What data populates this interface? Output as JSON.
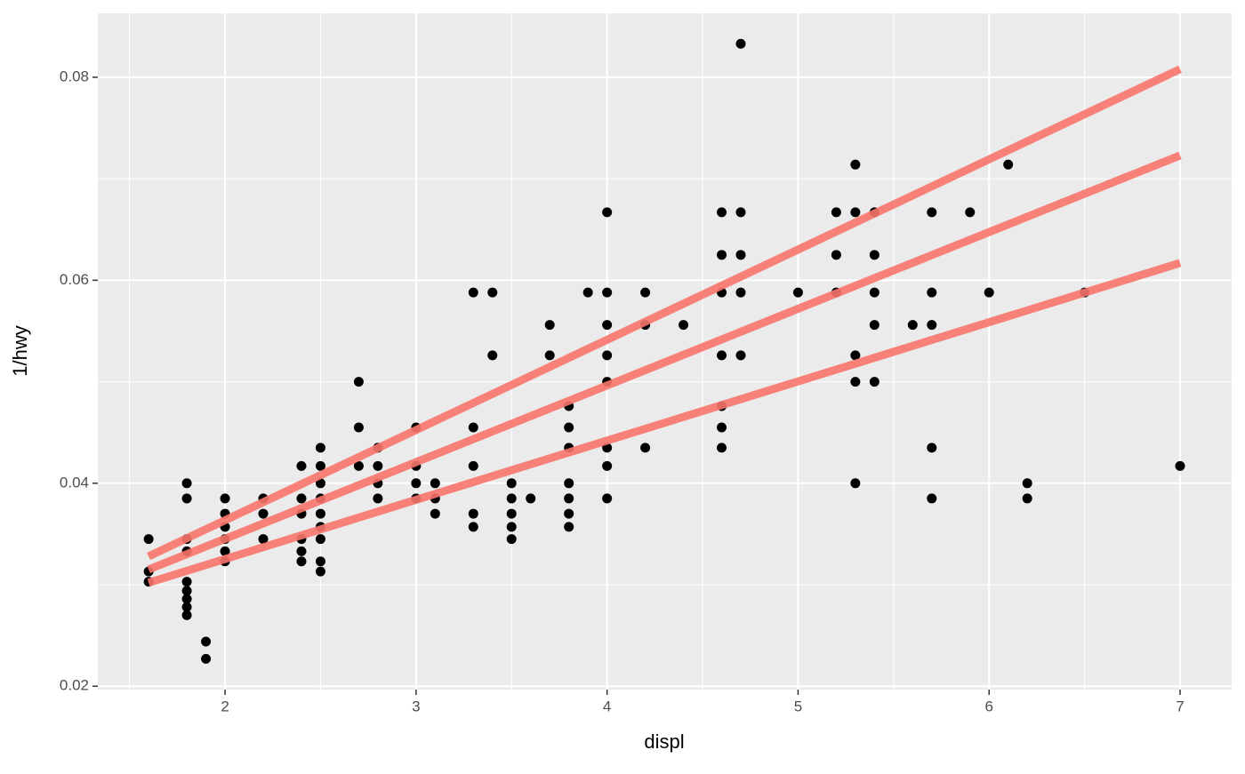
{
  "chart_data": {
    "type": "scatter",
    "xlabel": "displ",
    "ylabel": "1/hwy",
    "xlim": [
      1.334,
      7.27
    ],
    "ylim": [
      0.01967,
      0.0863
    ],
    "xticks": [
      2,
      3,
      4,
      5,
      6,
      7
    ],
    "yticks": [
      0.02,
      0.04,
      0.06,
      0.08
    ],
    "xminor": [
      1.5,
      2.5,
      3.5,
      4.5,
      5.5,
      6.5
    ],
    "yminor": [
      0.03,
      0.05,
      0.07
    ],
    "grid": true,
    "color": "#000000",
    "x": [
      1.6,
      1.6,
      1.6,
      1.8,
      1.8,
      1.8,
      1.8,
      1.8,
      1.8,
      1.8,
      1.8,
      1.8,
      1.9,
      1.9,
      2.0,
      2.0,
      2.0,
      2.0,
      2.0,
      2.0,
      2.2,
      2.2,
      2.2,
      2.4,
      2.4,
      2.4,
      2.4,
      2.4,
      2.4,
      2.5,
      2.5,
      2.5,
      2.5,
      2.5,
      2.5,
      2.5,
      2.5,
      2.5,
      2.7,
      2.7,
      2.7,
      2.8,
      2.8,
      2.8,
      2.8,
      3.0,
      3.0,
      3.0,
      3.0,
      3.1,
      3.1,
      3.1,
      3.3,
      3.3,
      3.3,
      3.3,
      3.3,
      3.4,
      3.4,
      3.5,
      3.5,
      3.5,
      3.5,
      3.5,
      3.6,
      3.7,
      3.7,
      3.8,
      3.8,
      3.8,
      3.8,
      3.8,
      3.8,
      3.8,
      3.9,
      4.0,
      4.0,
      4.0,
      4.0,
      4.0,
      4.0,
      4.0,
      4.0,
      4.2,
      4.2,
      4.2,
      4.4,
      4.6,
      4.6,
      4.6,
      4.6,
      4.6,
      4.6,
      4.6,
      4.7,
      4.7,
      4.7,
      4.7,
      4.7,
      5.0,
      5.2,
      5.2,
      5.2,
      5.3,
      5.3,
      5.3,
      5.3,
      5.3,
      5.4,
      5.4,
      5.4,
      5.4,
      5.4,
      5.6,
      5.7,
      5.7,
      5.7,
      5.7,
      5.7,
      5.9,
      6.0,
      6.1,
      6.2,
      6.2,
      6.5,
      7.0
    ],
    "values": [
      0.0345,
      0.0313,
      0.0303,
      0.04,
      0.0385,
      0.0345,
      0.0333,
      0.0303,
      0.0294,
      0.0286,
      0.0278,
      0.027,
      0.0244,
      0.0227,
      0.0385,
      0.037,
      0.0357,
      0.0345,
      0.0333,
      0.0323,
      0.0385,
      0.037,
      0.0345,
      0.0417,
      0.0385,
      0.037,
      0.0345,
      0.0333,
      0.0323,
      0.0435,
      0.0417,
      0.04,
      0.0385,
      0.037,
      0.0357,
      0.0345,
      0.0323,
      0.0313,
      0.05,
      0.0455,
      0.0417,
      0.0435,
      0.0417,
      0.04,
      0.0385,
      0.0455,
      0.0417,
      0.04,
      0.0385,
      0.04,
      0.0385,
      0.037,
      0.0588,
      0.0455,
      0.0417,
      0.037,
      0.0357,
      0.0588,
      0.0526,
      0.04,
      0.0385,
      0.037,
      0.0357,
      0.0345,
      0.0385,
      0.0556,
      0.0526,
      0.0476,
      0.0455,
      0.0435,
      0.04,
      0.0385,
      0.037,
      0.0357,
      0.0588,
      0.0667,
      0.0588,
      0.0556,
      0.0526,
      0.05,
      0.0435,
      0.0417,
      0.0385,
      0.0588,
      0.0556,
      0.0435,
      0.0556,
      0.0667,
      0.0625,
      0.0588,
      0.0526,
      0.0476,
      0.0455,
      0.0435,
      0.0833,
      0.0667,
      0.0625,
      0.0588,
      0.0526,
      0.0588,
      0.0667,
      0.0625,
      0.0588,
      0.0714,
      0.0667,
      0.0526,
      0.05,
      0.04,
      0.0667,
      0.0625,
      0.0588,
      0.0556,
      0.05,
      0.0556,
      0.0667,
      0.0588,
      0.0556,
      0.0435,
      0.0385,
      0.0667,
      0.0588,
      0.0714,
      0.04,
      0.0385,
      0.0588,
      0.0417
    ],
    "lines": [
      {
        "color": "#f8766d",
        "x": [
          1.6,
          7
        ],
        "values": [
          0.0328,
          0.0808
        ]
      },
      {
        "color": "#f8766d",
        "x": [
          1.6,
          7
        ],
        "values": [
          0.0315,
          0.0723
        ]
      },
      {
        "color": "#f8766d",
        "x": [
          1.6,
          7
        ],
        "values": [
          0.0302,
          0.0617
        ]
      }
    ]
  }
}
